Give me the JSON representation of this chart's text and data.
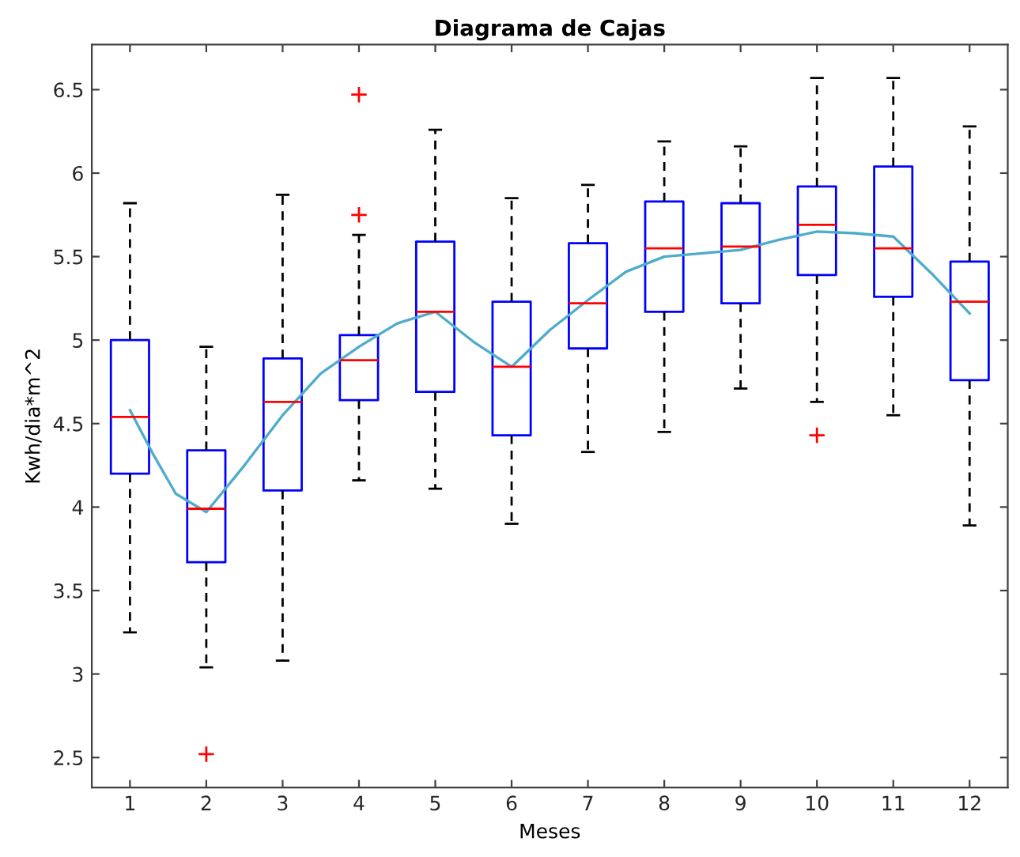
{
  "chart_data": {
    "type": "box",
    "title": "Diagrama de Cajas",
    "xlabel": "Meses",
    "ylabel": "Kwh/dia*m^2",
    "x": [
      1,
      2,
      3,
      4,
      5,
      6,
      7,
      8,
      9,
      10,
      11,
      12
    ],
    "xlim": [
      0.5,
      12.5
    ],
    "xticks": [
      1,
      2,
      3,
      4,
      5,
      6,
      7,
      8,
      9,
      10,
      11,
      12
    ],
    "ylim": [
      2.32,
      6.77
    ],
    "yticks": [
      2.5,
      3,
      3.5,
      4,
      4.5,
      5,
      5.5,
      6,
      6.5
    ],
    "grid": false,
    "boxes": [
      {
        "low": 3.25,
        "q1": 4.2,
        "median": 4.54,
        "q3": 5.0,
        "high": 5.82
      },
      {
        "low": 3.04,
        "q1": 3.67,
        "median": 3.99,
        "q3": 4.34,
        "high": 4.96,
        "outliers": [
          2.52
        ]
      },
      {
        "low": 3.08,
        "q1": 4.1,
        "median": 4.63,
        "q3": 4.89,
        "high": 5.87
      },
      {
        "low": 4.16,
        "q1": 4.64,
        "median": 4.88,
        "q3": 5.03,
        "high": 5.63,
        "outliers": [
          6.47,
          5.75
        ]
      },
      {
        "low": 4.11,
        "q1": 4.69,
        "median": 5.17,
        "q3": 5.59,
        "high": 6.26
      },
      {
        "low": 3.9,
        "q1": 4.43,
        "median": 4.84,
        "q3": 5.23,
        "high": 5.85
      },
      {
        "low": 4.33,
        "q1": 4.95,
        "median": 5.22,
        "q3": 5.58,
        "high": 5.93
      },
      {
        "low": 4.45,
        "q1": 5.17,
        "median": 5.55,
        "q3": 5.83,
        "high": 6.19
      },
      {
        "low": 4.71,
        "q1": 5.22,
        "median": 5.56,
        "q3": 5.82,
        "high": 6.16
      },
      {
        "low": 4.63,
        "q1": 5.39,
        "median": 5.69,
        "q3": 5.92,
        "high": 6.57,
        "outliers": [
          4.43
        ]
      },
      {
        "low": 4.55,
        "q1": 5.26,
        "median": 5.55,
        "q3": 6.04,
        "high": 6.57
      },
      {
        "low": 3.89,
        "q1": 4.76,
        "median": 5.23,
        "q3": 5.47,
        "high": 6.28
      }
    ],
    "series": [
      {
        "type": "line",
        "color": "#4daccc",
        "x": [
          1,
          1.3,
          1.6,
          2,
          2.5,
          3,
          3.5,
          4,
          4.5,
          5,
          5.5,
          6,
          6.5,
          7,
          7.5,
          8,
          8.5,
          9,
          9.5,
          10,
          10.5,
          11,
          11.5,
          12
        ],
        "values": [
          4.58,
          4.32,
          4.08,
          3.97,
          4.25,
          4.55,
          4.8,
          4.96,
          5.1,
          5.17,
          4.99,
          4.84,
          5.06,
          5.24,
          5.41,
          5.5,
          5.52,
          5.54,
          5.6,
          5.65,
          5.64,
          5.62,
          5.4,
          5.16
        ]
      }
    ]
  }
}
